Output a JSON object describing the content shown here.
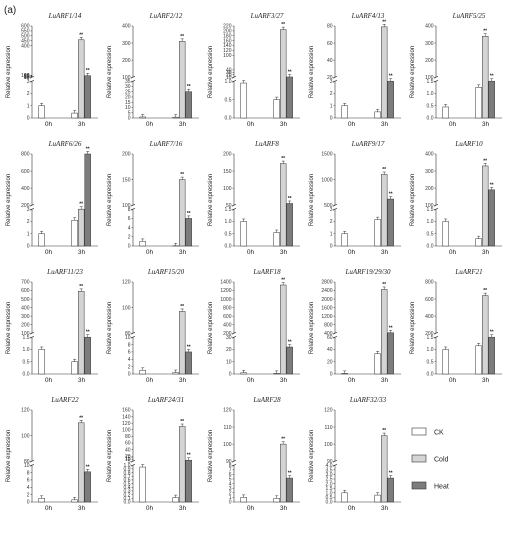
{
  "panel_label": "(a)",
  "y_axis_label": "Relative expression",
  "colors": {
    "CK": "#ffffff",
    "Cold": "#d4d4d4",
    "Heat": "#7c7c7c",
    "stroke": "#333333"
  },
  "legend": {
    "items": [
      "CK",
      "Cold",
      "Heat"
    ]
  },
  "chart_data": [
    {
      "type": "bar",
      "title": "LuARF1/14",
      "categories": [
        "0h",
        "3h"
      ],
      "series": [
        {
          "name": "CK",
          "values": [
            1.0,
            0.4
          ]
        },
        {
          "name": "Cold",
          "values": [
            null,
            460
          ]
        },
        {
          "name": "Heat",
          "values": [
            null,
            95
          ]
        }
      ],
      "yticks": [
        "0",
        "1",
        "2",
        "3",
        "80",
        "85",
        "90",
        "95",
        "100",
        "400",
        "450",
        "500",
        "550",
        "600"
      ],
      "significance": [
        null,
        "**",
        "**"
      ]
    },
    {
      "type": "bar",
      "title": "LuARF2/12",
      "categories": [
        "0h",
        "3h"
      ],
      "series": [
        {
          "name": "CK",
          "values": [
            1.0,
            0.8
          ]
        },
        {
          "name": "Cold",
          "values": [
            null,
            310
          ]
        },
        {
          "name": "Heat",
          "values": [
            null,
            25
          ]
        }
      ],
      "yticks": [
        "0",
        "5",
        "10",
        "15",
        "20",
        "25",
        "30",
        "35",
        "100",
        "200",
        "300",
        "400"
      ],
      "significance": [
        null,
        "**",
        "**"
      ]
    },
    {
      "type": "bar",
      "title": "LuARF3/27",
      "categories": [
        "0h",
        "3h"
      ],
      "series": [
        {
          "name": "CK",
          "values": [
            0.95,
            0.5
          ]
        },
        {
          "name": "Cold",
          "values": [
            null,
            205
          ]
        },
        {
          "name": "Heat",
          "values": [
            null,
            11
          ]
        }
      ],
      "yticks": [
        "0.0",
        "0.5",
        "1.0",
        "10",
        "20",
        "30",
        "40",
        "100",
        "120",
        "140",
        "160",
        "180",
        "200",
        "220"
      ],
      "significance": [
        null,
        "**",
        "**"
      ]
    },
    {
      "type": "bar",
      "title": "LuARF4/13",
      "categories": [
        "0h",
        "3h"
      ],
      "series": [
        {
          "name": "CK",
          "values": [
            1.0,
            0.5
          ]
        },
        {
          "name": "Cold",
          "values": [
            null,
            79
          ]
        },
        {
          "name": "Heat",
          "values": [
            null,
            3
          ]
        }
      ],
      "yticks": [
        "0",
        "1",
        "2",
        "3",
        "20",
        "40",
        "60",
        "80"
      ],
      "significance": [
        null,
        "**",
        "**"
      ]
    },
    {
      "type": "bar",
      "title": "LuARF5/25",
      "categories": [
        "0h",
        "3h"
      ],
      "series": [
        {
          "name": "CK",
          "values": [
            0.45,
            1.25
          ]
        },
        {
          "name": "Cold",
          "values": [
            null,
            340
          ]
        },
        {
          "name": "Heat",
          "values": [
            null,
            50
          ]
        }
      ],
      "yticks": [
        "0.0",
        "0.5",
        "1.0",
        "1.5",
        "100",
        "200",
        "300",
        "400"
      ],
      "significance": [
        null,
        "**",
        "**"
      ]
    },
    {
      "type": "bar",
      "title": "LuARF6/26",
      "categories": [
        "0h",
        "3h"
      ],
      "series": [
        {
          "name": "CK",
          "values": [
            1.0,
            2.1
          ]
        },
        {
          "name": "Cold",
          "values": [
            null,
            15
          ]
        },
        {
          "name": "Heat",
          "values": [
            null,
            840
          ]
        }
      ],
      "yticks": [
        "0",
        "1",
        "2",
        "3",
        "200",
        "400",
        "600",
        "800"
      ],
      "significance": [
        null,
        "**",
        "**"
      ]
    },
    {
      "type": "bar",
      "title": "LuARF7/16",
      "categories": [
        "0h",
        "3h"
      ],
      "series": [
        {
          "name": "CK",
          "values": [
            1.0,
            0.05
          ]
        },
        {
          "name": "Cold",
          "values": [
            null,
            150
          ]
        },
        {
          "name": "Heat",
          "values": [
            null,
            6
          ]
        }
      ],
      "yticks": [
        "0",
        "2",
        "4",
        "6",
        "8",
        "100",
        "150",
        "200"
      ],
      "significance": [
        null,
        "**",
        "**"
      ]
    },
    {
      "type": "bar",
      "title": "LuARF8",
      "categories": [
        "0h",
        "3h"
      ],
      "series": [
        {
          "name": "CK",
          "values": [
            1.0,
            0.55
          ]
        },
        {
          "name": "Cold",
          "values": [
            null,
            172
          ]
        },
        {
          "name": "Heat",
          "values": [
            null,
            55
          ]
        }
      ],
      "yticks": [
        "0.0",
        "0.5",
        "1.0",
        "1.5",
        "50",
        "100",
        "150",
        "200"
      ],
      "significance": [
        null,
        "**",
        "**"
      ]
    },
    {
      "type": "bar",
      "title": "LuARF9/17",
      "categories": [
        "0h",
        "3h"
      ],
      "series": [
        {
          "name": "CK",
          "values": [
            1.0,
            2.15
          ]
        },
        {
          "name": "Cold",
          "values": [
            null,
            1100
          ]
        },
        {
          "name": "Heat",
          "values": [
            null,
            620
          ]
        }
      ],
      "yticks": [
        "0",
        "1",
        "2",
        "3",
        "500",
        "1000",
        "1500"
      ],
      "significance": [
        null,
        "**",
        "**"
      ]
    },
    {
      "type": "bar",
      "title": "LuARF10",
      "categories": [
        "0h",
        "3h"
      ],
      "series": [
        {
          "name": "CK",
          "values": [
            1.0,
            0.3
          ]
        },
        {
          "name": "Cold",
          "values": [
            null,
            330
          ]
        },
        {
          "name": "Heat",
          "values": [
            null,
            190
          ]
        }
      ],
      "yticks": [
        "0.0",
        "0.5",
        "1.0",
        "1.5",
        "100",
        "200",
        "300",
        "400"
      ],
      "significance": [
        null,
        "**",
        "**"
      ]
    },
    {
      "type": "bar",
      "title": "LuARF11/23",
      "categories": [
        "0h",
        "3h"
      ],
      "series": [
        {
          "name": "CK",
          "values": [
            1.0,
            0.5
          ]
        },
        {
          "name": "Cold",
          "values": [
            null,
            590
          ]
        },
        {
          "name": "Heat",
          "values": [
            null,
            35
          ]
        }
      ],
      "yticks": [
        "0.0",
        "0.5",
        "1.0",
        "1.5",
        "100",
        "200",
        "300",
        "400",
        "500",
        "600",
        "700"
      ],
      "significance": [
        null,
        "**",
        "**"
      ]
    },
    {
      "type": "bar",
      "title": "LuARF15/20",
      "categories": [
        "0h",
        "3h"
      ],
      "series": [
        {
          "name": "CK",
          "values": [
            1.0,
            0.4
          ]
        },
        {
          "name": "Cold",
          "values": [
            null,
            97
          ]
        },
        {
          "name": "Heat",
          "values": [
            null,
            6
          ]
        }
      ],
      "yticks": [
        "0",
        "2",
        "4",
        "6",
        "8",
        "10",
        "80",
        "100",
        "120"
      ],
      "significance": [
        null,
        "**",
        "**"
      ]
    },
    {
      "type": "bar",
      "title": "LuARF18",
      "categories": [
        "0h",
        "3h"
      ],
      "series": [
        {
          "name": "CK",
          "values": [
            1.0,
            0.5
          ]
        },
        {
          "name": "Cold",
          "values": [
            null,
            1330
          ]
        },
        {
          "name": "Heat",
          "values": [
            null,
            22
          ]
        }
      ],
      "yticks": [
        "0",
        "10",
        "20",
        "30",
        "200",
        "400",
        "600",
        "800",
        "1000",
        "1200",
        "1400"
      ],
      "significance": [
        null,
        "**",
        "**"
      ]
    },
    {
      "type": "bar",
      "title": "LuARF19/29/30",
      "categories": [
        "0h",
        "3h"
      ],
      "series": [
        {
          "name": "CK",
          "values": [
            1.0,
            33
          ]
        },
        {
          "name": "Cold",
          "values": [
            null,
            2450
          ]
        },
        {
          "name": "Heat",
          "values": [
            null,
            420
          ]
        }
      ],
      "yticks": [
        "0",
        "20",
        "40",
        "60",
        "400",
        "800",
        "1200",
        "1600",
        "2000",
        "2400",
        "2800"
      ],
      "significance": [
        null,
        "**",
        "**"
      ]
    },
    {
      "type": "bar",
      "title": "LuARF21",
      "categories": [
        "0h",
        "3h"
      ],
      "series": [
        {
          "name": "CK",
          "values": [
            1.0,
            1.15
          ]
        },
        {
          "name": "Cold",
          "values": [
            null,
            640
          ]
        },
        {
          "name": "Heat",
          "values": [
            null,
            95
          ]
        }
      ],
      "yticks": [
        "0.0",
        "0.5",
        "1.0",
        "1.5",
        "200",
        "400",
        "600",
        "800"
      ],
      "significance": [
        null,
        "**",
        "**"
      ]
    },
    {
      "type": "bar",
      "title": "LuARF22",
      "categories": [
        "0h",
        "3h"
      ],
      "series": [
        {
          "name": "CK",
          "values": [
            1.0,
            0.6
          ]
        },
        {
          "name": "Cold",
          "values": [
            null,
            110
          ]
        },
        {
          "name": "Heat",
          "values": [
            null,
            8.2
          ]
        }
      ],
      "yticks": [
        "0",
        "2",
        "4",
        "6",
        "8",
        "10",
        "80",
        "100",
        "120"
      ],
      "significance": [
        null,
        "**",
        "**"
      ]
    },
    {
      "type": "bar",
      "title": "LuARF24/31",
      "categories": [
        "0h",
        "3h"
      ],
      "series": [
        {
          "name": "CK",
          "values": [
            0.95,
            0.12
          ]
        },
        {
          "name": "Cold",
          "values": [
            null,
            110
          ]
        },
        {
          "name": "Heat",
          "values": [
            null,
            8
          ]
        }
      ],
      "yticks": [
        "0.0",
        "0.1",
        "0.2",
        "0.3",
        "0.4",
        "0.5",
        "0.6",
        "0.7",
        "0.8",
        "0.9",
        "1.0",
        "5",
        "10",
        "15",
        "20",
        "40",
        "60",
        "80",
        "100",
        "120",
        "140",
        "160"
      ],
      "significance": [
        null,
        "**",
        "**"
      ]
    },
    {
      "type": "bar",
      "title": "LuARF28",
      "categories": [
        "0h",
        "3h"
      ],
      "series": [
        {
          "name": "CK",
          "values": [
            1.0,
            0.8
          ]
        },
        {
          "name": "Cold",
          "values": [
            null,
            100
          ]
        },
        {
          "name": "Heat",
          "values": [
            null,
            5.2
          ]
        }
      ],
      "yticks": [
        "0",
        "1",
        "2",
        "3",
        "4",
        "5",
        "6",
        "7",
        "8",
        "90",
        "100",
        "110",
        "120"
      ],
      "significance": [
        null,
        "**",
        "**"
      ]
    },
    {
      "type": "bar",
      "title": "LuARF32/33",
      "categories": [
        "0h",
        "3h"
      ],
      "series": [
        {
          "name": "CK",
          "values": [
            1.0,
            0.75
          ]
        },
        {
          "name": "Cold",
          "values": [
            null,
            105
          ]
        },
        {
          "name": "Heat",
          "values": [
            null,
            2.6
          ]
        }
      ],
      "yticks": [
        "0.0",
        "0.5",
        "1.0",
        "1.5",
        "2.0",
        "2.5",
        "3.0",
        "3.5",
        "4.0",
        "90",
        "100",
        "110",
        "120"
      ],
      "significance": [
        null,
        "**",
        "**"
      ]
    }
  ]
}
